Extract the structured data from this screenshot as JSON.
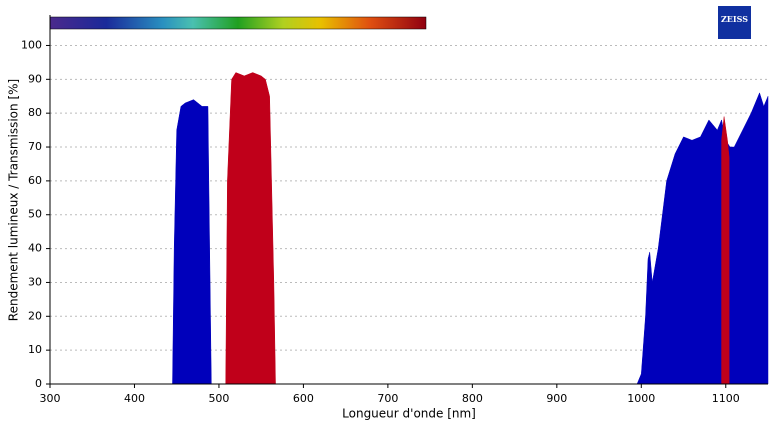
{
  "chart_data": {
    "type": "area",
    "logo": "ZEISS",
    "xlabel": "Longueur d'onde [nm]",
    "ylabel": "Rendement lumineux / Transmission [%]",
    "xlim": [
      300,
      1150
    ],
    "ylim": [
      0,
      109
    ],
    "xticks": [
      300,
      400,
      500,
      600,
      700,
      800,
      900,
      1000,
      1100
    ],
    "yticks": [
      0,
      10,
      20,
      30,
      40,
      50,
      60,
      70,
      80,
      90,
      100
    ],
    "grid": true,
    "series": [
      {
        "color": "#0000bb",
        "x": [
          445,
          447,
          450,
          455,
          460,
          470,
          480,
          487,
          488,
          490,
          491,
          null,
          995,
          1000,
          1005,
          1008,
          1010,
          1013,
          1020,
          1030,
          1040,
          1050,
          1060,
          1070,
          1080,
          1090,
          1095,
          1100,
          1105,
          1110,
          1120,
          1130,
          1140,
          1145,
          1150
        ],
        "values": [
          0,
          40,
          75,
          82,
          83,
          84,
          82,
          82,
          60,
          20,
          0,
          null,
          0,
          3,
          20,
          37,
          39,
          30,
          40,
          60,
          68,
          73,
          72,
          73,
          78,
          75,
          78,
          72,
          70,
          70,
          75,
          80,
          86,
          82,
          85
        ]
      },
      {
        "color": "#c0001a",
        "x": [
          508,
          510,
          515,
          520,
          530,
          540,
          550,
          555,
          560,
          565,
          567,
          null,
          1095,
          1098,
          1102,
          1104
        ],
        "values": [
          0,
          60,
          90,
          92,
          91,
          92,
          91,
          90,
          85,
          30,
          0,
          null,
          72,
          79,
          72,
          67
        ]
      }
    ]
  }
}
